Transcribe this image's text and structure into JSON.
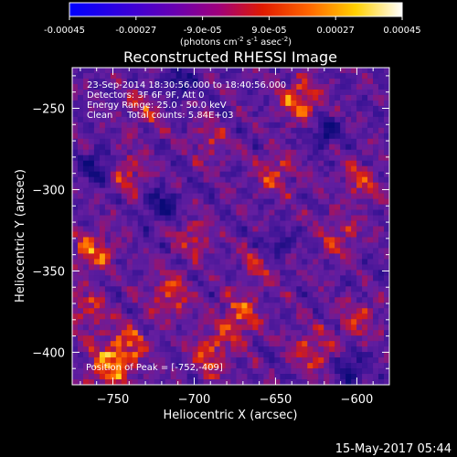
{
  "chart_data": {
    "type": "heatmap",
    "title": "Reconstructed RHESSI Image",
    "xlabel": "Heliocentric X (arcsec)",
    "ylabel": "Heliocentric Y (arcsec)",
    "xlim": [
      -775,
      -580
    ],
    "ylim": [
      -420,
      -225
    ],
    "xticks": [
      -750,
      -700,
      -650,
      -600
    ],
    "yticks": [
      -250,
      -300,
      -350,
      -400
    ],
    "grid": false,
    "colormap": "blue-purple-red-yellow-white",
    "colorbar": {
      "range": [
        -0.00045,
        0.00045
      ],
      "ticks": [
        -0.00045,
        -0.00027,
        -9e-05,
        9e-05,
        0.00027,
        0.00045
      ],
      "tick_labels": [
        "-0.00045",
        "-0.00027",
        "-9.0e-05",
        "9.0e-05",
        "0.00027",
        "0.00045"
      ],
      "unit_base": "(photons cm",
      "unit_exp1": "-2",
      "unit_mid": " s",
      "unit_exp2": "-1",
      "unit_mid2": " asec",
      "unit_exp3": "-2",
      "unit_end": ")"
    },
    "annotations": [
      "23-Sep-2014 18:30:56.000 to 18:40:56.000",
      "Detectors: 3F 6F 9F, Att 0",
      "Energy Range: 25.0 - 50.0 keV",
      "Clean     Total counts: 5.84E+03"
    ],
    "peak_label": "Position of Peak = [-752,-409]",
    "peak": [
      -752,
      -409
    ],
    "bright_spots": [
      {
        "x": -752,
        "y": -409,
        "v": 1.0
      },
      {
        "x": -635,
        "y": -245,
        "v": 0.9
      },
      {
        "x": -672,
        "y": -378,
        "v": 0.85
      },
      {
        "x": -762,
        "y": -338,
        "v": 0.8
      },
      {
        "x": -740,
        "y": -290,
        "v": 0.6
      },
      {
        "x": -715,
        "y": -365,
        "v": 0.75
      },
      {
        "x": -690,
        "y": -400,
        "v": 0.8
      },
      {
        "x": -700,
        "y": -330,
        "v": 0.55
      },
      {
        "x": -650,
        "y": -290,
        "v": 0.6
      },
      {
        "x": -610,
        "y": -330,
        "v": 0.55
      },
      {
        "x": -598,
        "y": -295,
        "v": 0.6
      },
      {
        "x": -627,
        "y": -400,
        "v": 0.7
      },
      {
        "x": -600,
        "y": -380,
        "v": 0.55
      },
      {
        "x": -730,
        "y": -250,
        "v": 0.5
      },
      {
        "x": -660,
        "y": -345,
        "v": 0.6
      },
      {
        "x": -740,
        "y": -395,
        "v": 0.7
      },
      {
        "x": -765,
        "y": -375,
        "v": 0.65
      },
      {
        "x": -690,
        "y": -270,
        "v": 0.45
      }
    ],
    "dark_spots": [
      {
        "x": -760,
        "y": -285
      },
      {
        "x": -650,
        "y": -335
      },
      {
        "x": -710,
        "y": -235
      },
      {
        "x": -720,
        "y": -310
      },
      {
        "x": -620,
        "y": -265
      },
      {
        "x": -605,
        "y": -410
      }
    ]
  },
  "footer": {
    "timestamp": "15-May-2017 05:44"
  }
}
